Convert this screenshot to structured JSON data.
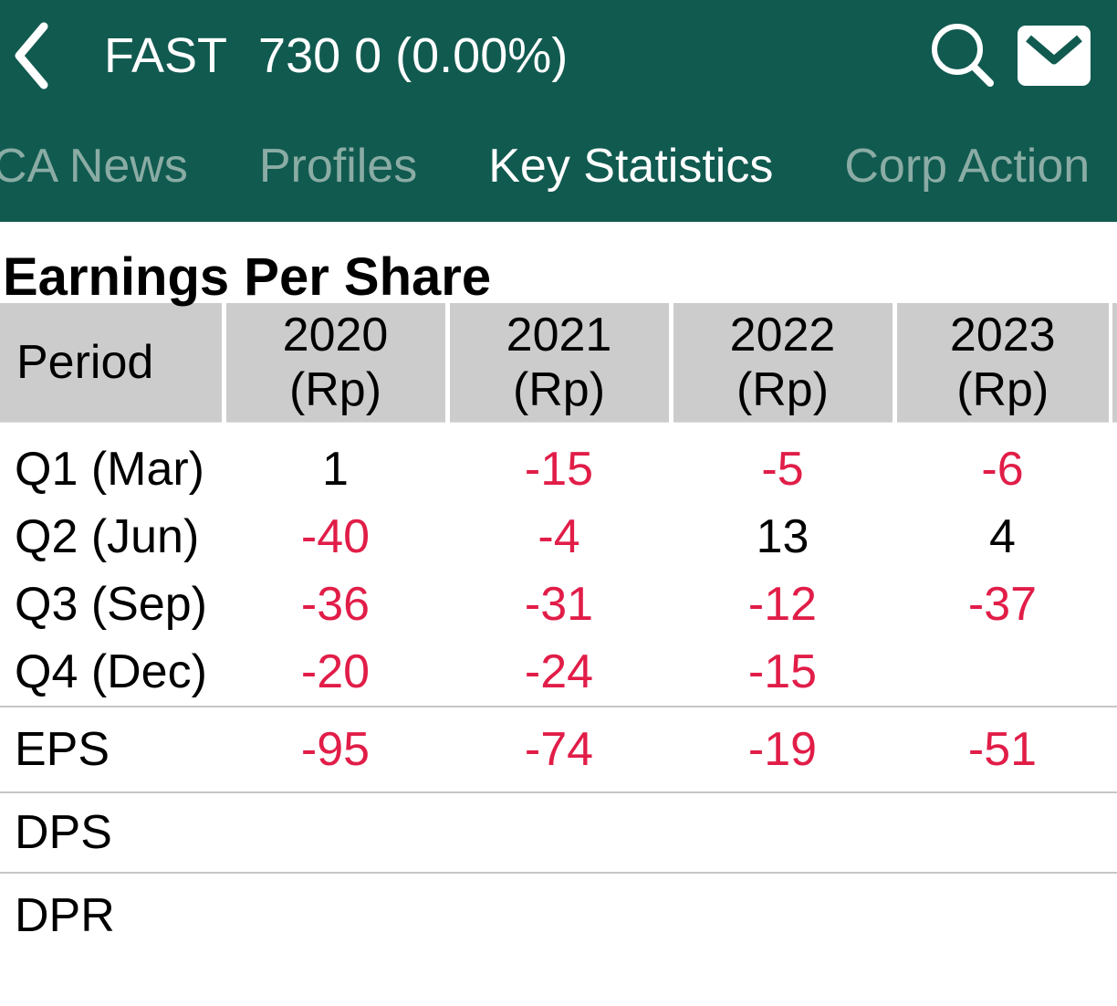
{
  "appbar": {
    "ticker": "FAST",
    "quote": "730 0 (0.00%)",
    "icons": {
      "back": "back-chevron-icon",
      "search": "search-icon",
      "mail": "mail-icon"
    }
  },
  "tabs": [
    {
      "label": "CA News",
      "active": false
    },
    {
      "label": "Profiles",
      "active": false
    },
    {
      "label": "Key Statistics",
      "active": true
    },
    {
      "label": "Corp Action",
      "active": false
    }
  ],
  "page": {
    "heading": "Earnings Per Share"
  },
  "table": {
    "period_header": "Period",
    "year_headers": [
      {
        "year": "2020",
        "unit": "(Rp)"
      },
      {
        "year": "2021",
        "unit": "(Rp)"
      },
      {
        "year": "2022",
        "unit": "(Rp)"
      },
      {
        "year": "2023",
        "unit": "(Rp)"
      }
    ],
    "rows": [
      {
        "label": "Q1 (Mar)",
        "values": [
          "1",
          "-15",
          "-5",
          "-6"
        ]
      },
      {
        "label": "Q2 (Jun)",
        "values": [
          "-40",
          "-4",
          "13",
          "4"
        ]
      },
      {
        "label": "Q3 (Sep)",
        "values": [
          "-36",
          "-31",
          "-12",
          "-37"
        ]
      },
      {
        "label": "Q4 (Dec)",
        "values": [
          "-20",
          "-24",
          "-15",
          ""
        ]
      }
    ],
    "summary_rows": [
      {
        "label": "EPS",
        "values": [
          "-95",
          "-74",
          "-19",
          "-51"
        ]
      },
      {
        "label": "DPS",
        "values": [
          "",
          "",
          "",
          ""
        ]
      },
      {
        "label": "DPR",
        "values": [
          "",
          "",
          "",
          ""
        ]
      }
    ]
  },
  "colors": {
    "appbar_teal": "#115a50",
    "negative_red": "#e11d48",
    "inactive_tab": "#8aaca4",
    "header_gray": "#cccccc",
    "divider_gray": "#c6c6c6"
  }
}
